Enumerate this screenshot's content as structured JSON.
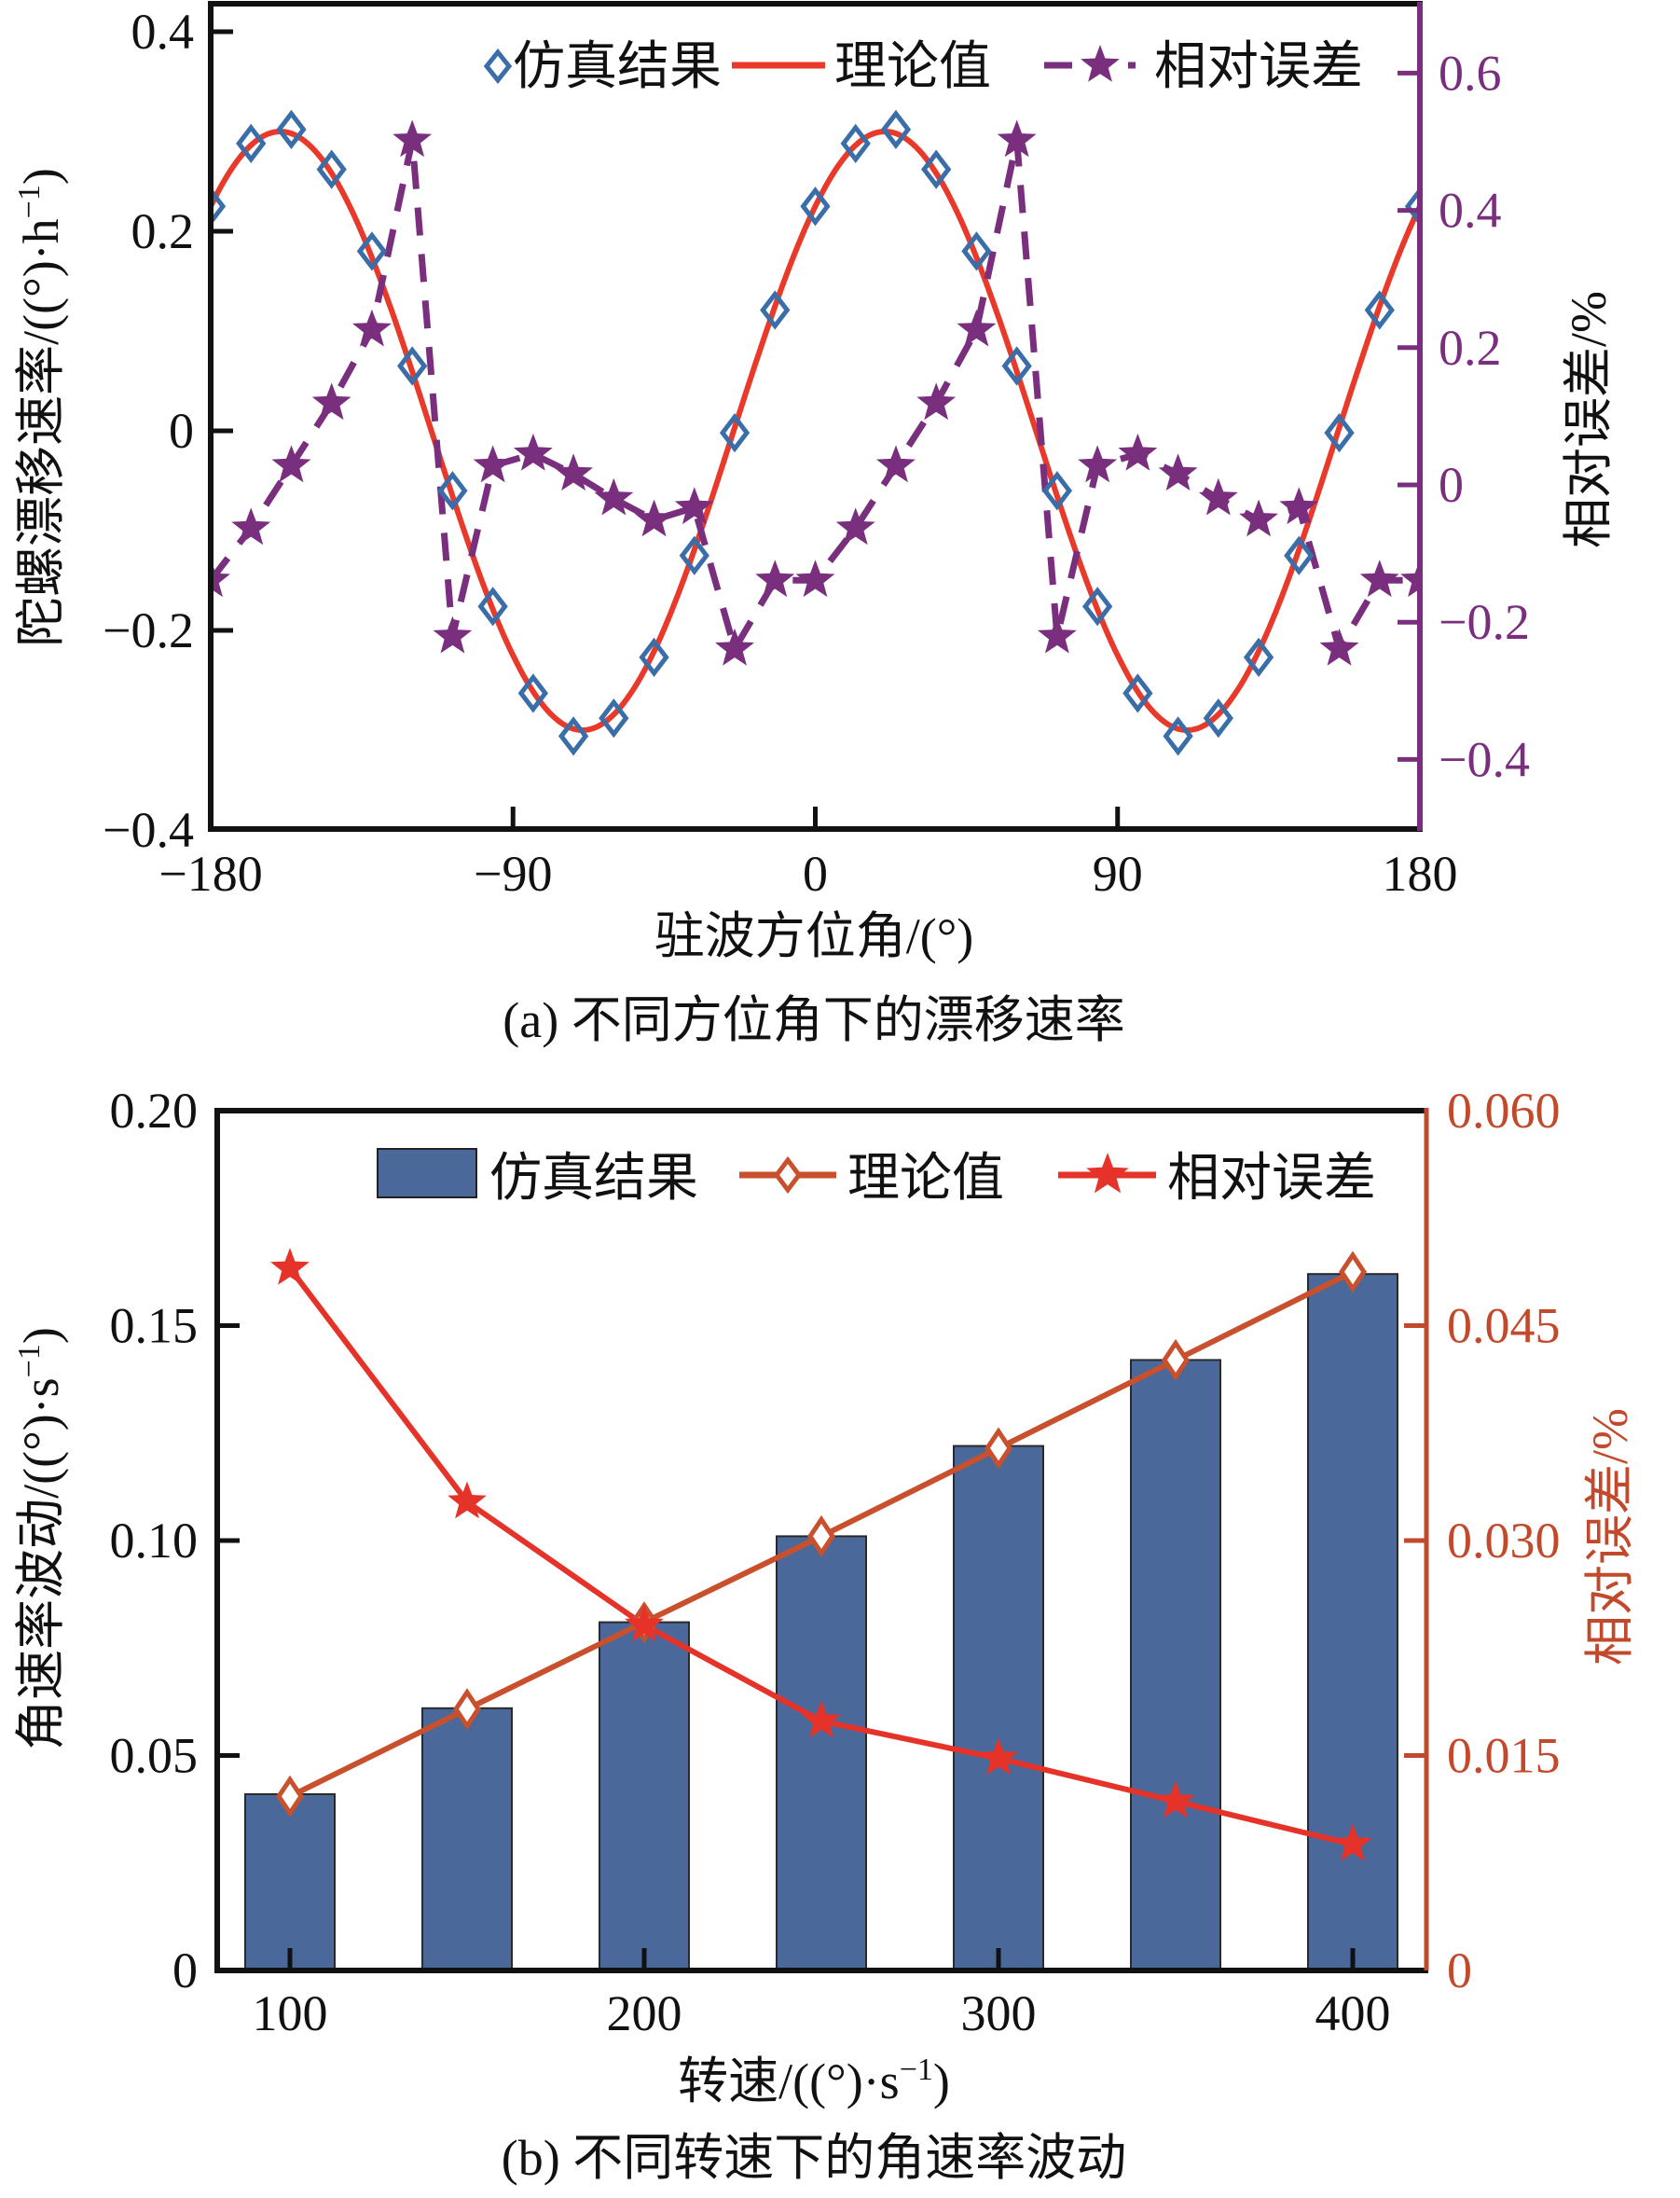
{
  "colors": {
    "axis": "#111111",
    "sim_marker": "#3A6EA8",
    "theory_line_a": "#E8392A",
    "error_a": "#7A2E7E",
    "bar_fill": "#4A6899",
    "bar_edge": "#2A2A2A",
    "theory_line_b": "#C9502C",
    "error_b": "#E6332A",
    "right_axis_b": "#C24A2C"
  },
  "chart_data": [
    {
      "type": "line",
      "title": "(a) 不同方位角下的漂移速率",
      "xlabel": "驻波方位角/(°)",
      "ylabel": "陀螺漂移速率/((°)·h⁻¹)",
      "ylabel_main": "陀螺漂移速率/((°)·h",
      "ylabel_sup": "−1",
      "ylabel_tail": ")",
      "y2label": "相对误差/%",
      "xlim": [
        -180,
        180
      ],
      "ylim": [
        -0.4,
        0.42
      ],
      "y2lim": [
        -0.505,
        0.7
      ],
      "xticks": [
        -180,
        -90,
        0,
        90,
        180
      ],
      "xtick_labels": [
        "−180",
        "−90",
        "0",
        "90",
        "180"
      ],
      "yticks": [
        -0.4,
        -0.2,
        0,
        0.2,
        0.4
      ],
      "ytick_labels": [
        "−0.4",
        "−0.2",
        "0",
        "0.2",
        "0.4"
      ],
      "y2ticks": [
        -0.4,
        -0.2,
        0,
        0.2,
        0.4,
        0.6
      ],
      "y2tick_labels": [
        "−0.4",
        "−0.2",
        "0",
        "0.2",
        "0.4",
        "0.6"
      ],
      "grid": false,
      "legend_position": "top-right",
      "legend": [
        "仿真结果",
        "理论值",
        "相对误差"
      ],
      "x": [
        -180,
        -168,
        -156,
        -144,
        -132,
        -120,
        -108,
        -96,
        -84,
        -72,
        -60,
        -48,
        -36,
        -24,
        -12,
        0,
        12,
        24,
        36,
        48,
        60,
        72,
        84,
        96,
        108,
        120,
        132,
        144,
        156,
        168,
        180
      ],
      "series": [
        {
          "name": "仿真结果",
          "axis": "left",
          "style": "diamond markers",
          "values": [
            0.225,
            0.288,
            0.302,
            0.262,
            0.18,
            0.065,
            -0.06,
            -0.176,
            -0.263,
            -0.306,
            -0.288,
            -0.227,
            -0.125,
            -0.002,
            0.121,
            0.225,
            0.288,
            0.302,
            0.262,
            0.18,
            0.065,
            -0.06,
            -0.176,
            -0.263,
            -0.306,
            -0.288,
            -0.227,
            -0.125,
            -0.002,
            0.121,
            0.225
          ]
        },
        {
          "name": "理论值",
          "axis": "left",
          "style": "solid line",
          "amplitude": 0.3,
          "phase_deg": 48.6,
          "formula": "0.3·sin(2θ+48.6°)"
        },
        {
          "name": "相对误差",
          "axis": "right",
          "style": "dashed line with star markers",
          "values": [
            -0.139,
            -0.063,
            0.028,
            0.119,
            0.226,
            0.502,
            -0.221,
            0.028,
            0.045,
            0.016,
            -0.02,
            -0.051,
            -0.033,
            -0.239,
            -0.139,
            -0.139,
            -0.063,
            0.028,
            0.119,
            0.226,
            0.502,
            -0.221,
            0.028,
            0.045,
            0.016,
            -0.02,
            -0.051,
            -0.033,
            -0.239,
            -0.139,
            -0.139
          ]
        }
      ]
    },
    {
      "type": "bar",
      "title": "(b) 不同转速下的角速率波动",
      "xlabel": "转速/((°)·s⁻¹)",
      "xlabel_main": "转速/((°)·s",
      "xlabel_sup": "−1",
      "xlabel_tail": ")",
      "ylabel": "角速率波动/((°)·s⁻¹)",
      "ylabel_main": "角速率波动/((°)·s",
      "ylabel_sup": "−1",
      "ylabel_tail": ")",
      "y2label": "相对误差/%",
      "xlim": [
        80,
        420
      ],
      "ylim": [
        0,
        0.2
      ],
      "y2lim": [
        0,
        0.06
      ],
      "xticks": [
        100,
        200,
        300,
        400
      ],
      "xtick_labels": [
        "100",
        "200",
        "300",
        "400"
      ],
      "yticks": [
        0,
        0.05,
        0.1,
        0.15,
        0.2
      ],
      "ytick_labels": [
        "0",
        "0.05",
        "0.10",
        "0.15",
        "0.20"
      ],
      "y2ticks": [
        0,
        0.015,
        0.03,
        0.045,
        0.06
      ],
      "y2tick_labels": [
        "0",
        "0.015",
        "0.030",
        "0.045",
        "0.060"
      ],
      "grid": false,
      "legend_position": "top-right",
      "legend": [
        "仿真结果",
        "理论值",
        "相对误差"
      ],
      "categories": [
        100,
        150,
        200,
        250,
        300,
        350,
        400
      ],
      "series": [
        {
          "name": "仿真结果",
          "axis": "left",
          "style": "bar",
          "values": [
            0.041,
            0.061,
            0.081,
            0.101,
            0.122,
            0.142,
            0.162
          ]
        },
        {
          "name": "理论值",
          "axis": "left",
          "style": "line with diamond markers",
          "values": [
            0.0405,
            0.0608,
            0.081,
            0.101,
            0.1215,
            0.142,
            0.1625
          ]
        },
        {
          "name": "相对误差",
          "axis": "right",
          "style": "line with star markers",
          "values": [
            0.049,
            0.0327,
            0.0241,
            0.0174,
            0.0148,
            0.0118,
            0.0088
          ]
        }
      ]
    }
  ]
}
